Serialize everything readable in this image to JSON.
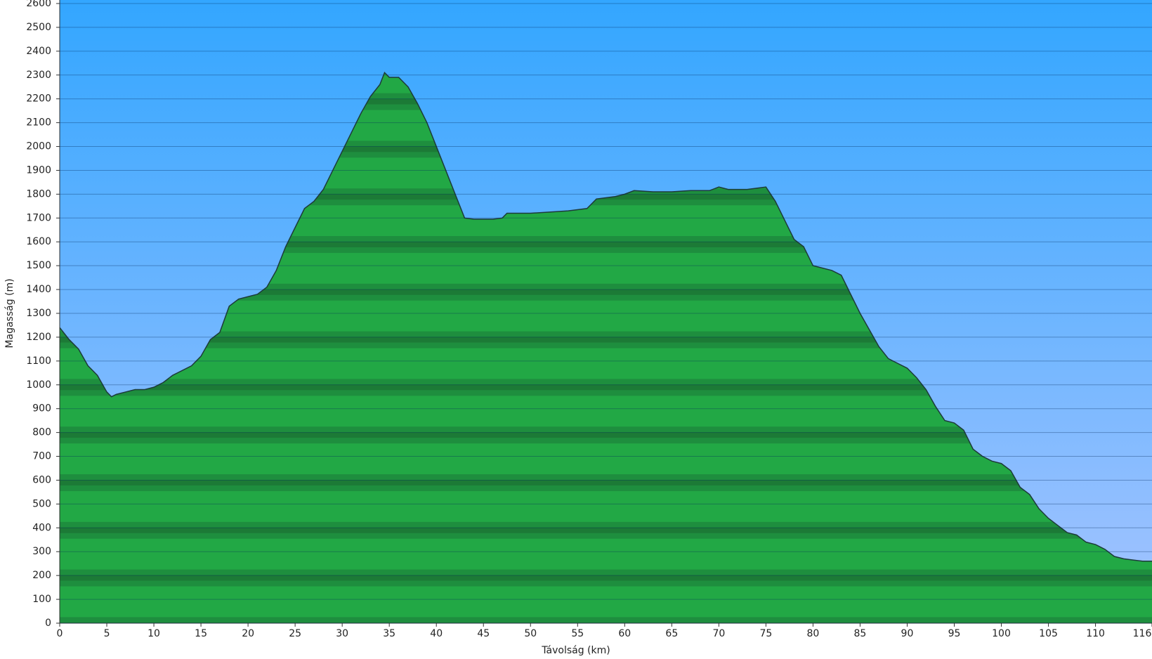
{
  "chart_data": {
    "type": "area",
    "x_label": "Távolság (km)",
    "y_label": "Magasság (m)",
    "x": [
      0,
      1,
      2,
      3,
      4,
      5,
      5.5,
      6,
      7,
      8,
      9,
      10,
      11,
      12,
      13,
      14,
      15,
      16,
      17,
      18,
      19,
      20,
      21,
      22,
      23,
      24,
      25,
      26,
      27,
      28,
      29,
      30,
      31,
      32,
      33,
      34,
      34.5,
      35,
      36,
      37,
      38,
      39,
      40,
      41,
      42,
      43,
      44,
      45,
      46,
      47,
      47.5,
      48,
      50,
      52,
      54,
      56,
      57,
      59,
      60,
      61,
      63,
      65,
      67,
      69,
      70,
      71,
      73,
      75,
      76,
      77,
      78,
      79,
      80,
      82,
      83,
      84,
      85,
      86,
      87,
      88,
      89,
      90,
      91,
      92,
      93,
      94,
      95,
      96,
      97,
      98,
      99,
      100,
      101,
      102,
      103,
      104,
      105,
      106,
      107,
      108,
      109,
      110,
      111,
      112,
      113,
      114,
      115,
      116
    ],
    "values": [
      1240,
      1190,
      1150,
      1080,
      1040,
      970,
      950,
      960,
      970,
      980,
      980,
      990,
      1010,
      1040,
      1060,
      1080,
      1120,
      1190,
      1220,
      1330,
      1360,
      1370,
      1380,
      1410,
      1480,
      1580,
      1660,
      1740,
      1770,
      1820,
      1900,
      1980,
      2060,
      2140,
      2210,
      2260,
      2310,
      2290,
      2290,
      2250,
      2180,
      2100,
      2000,
      1900,
      1800,
      1700,
      1695,
      1695,
      1695,
      1700,
      1720,
      1720,
      1720,
      1725,
      1730,
      1740,
      1780,
      1790,
      1800,
      1815,
      1810,
      1810,
      1815,
      1815,
      1830,
      1820,
      1820,
      1830,
      1770,
      1690,
      1610,
      1580,
      1500,
      1480,
      1460,
      1380,
      1300,
      1230,
      1160,
      1110,
      1090,
      1070,
      1030,
      980,
      910,
      850,
      840,
      810,
      730,
      700,
      680,
      670,
      640,
      570,
      540,
      480,
      440,
      410,
      380,
      370,
      340,
      330,
      310,
      280,
      270,
      265,
      260,
      260
    ],
    "color": "#22a845",
    "xlim": [
      0,
      116
    ],
    "xticks": [
      0,
      5,
      10,
      15,
      20,
      25,
      30,
      35,
      40,
      45,
      50,
      55,
      60,
      65,
      70,
      75,
      80,
      85,
      90,
      95,
      100,
      105,
      110,
      116
    ],
    "ylim": [
      0,
      2600
    ],
    "yticks": [
      0,
      100,
      200,
      300,
      400,
      500,
      600,
      700,
      800,
      900,
      1000,
      1100,
      1200,
      1300,
      1400,
      1500,
      1600,
      1700,
      1800,
      1900,
      2000,
      2100,
      2200,
      2300,
      2400,
      2500,
      2600
    ],
    "grid": true
  }
}
